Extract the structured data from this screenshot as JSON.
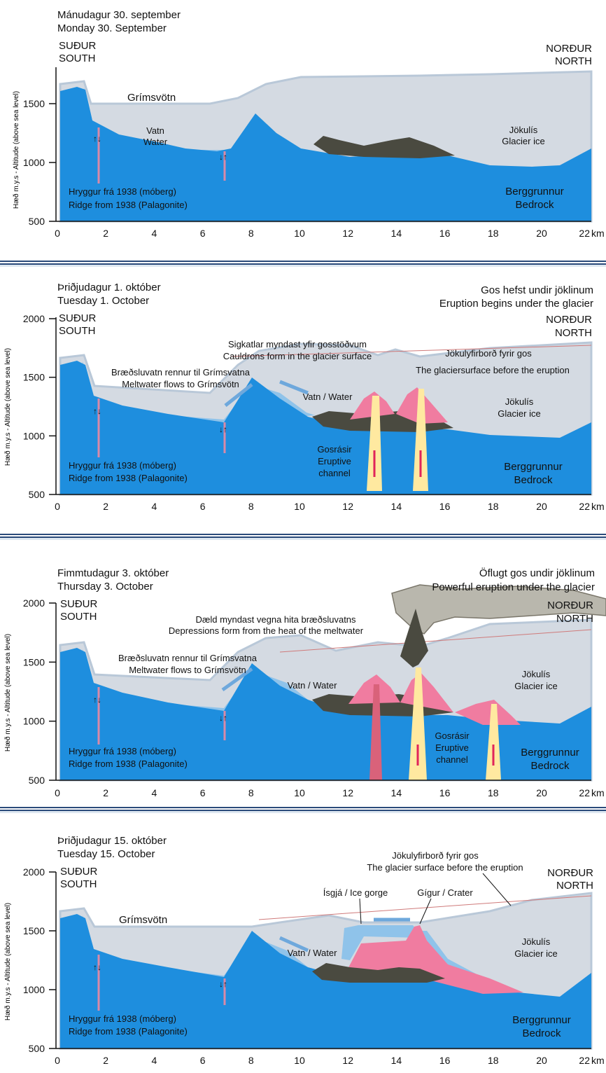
{
  "colors": {
    "bedrock": "#1e8ede",
    "water": "#8fc3ea",
    "glacier": "#d4dae2",
    "glacier_edge": "#b9c8d8",
    "hyaloclastite": "#4a4a40",
    "magma": "#f07ca0",
    "channel": "#ffe9a0",
    "ridge": "#d98aa8",
    "separator": "#2a4a7a"
  },
  "y_axis_label": "Hæð m.y.s - Altitude (above sea level)",
  "km_unit": "km",
  "panels": [
    {
      "date_is": "Mánudagur 30. september",
      "date_en": "Monday 30. September",
      "south_is": "SUÐUR",
      "south_en": "SOUTH",
      "north_is": "NORÐUR",
      "north_en": "NORTH",
      "y_ticks": [
        "500",
        "1000",
        "1500"
      ],
      "x_ticks": [
        "0",
        "2",
        "4",
        "6",
        "8",
        "10",
        "12",
        "14",
        "16",
        "18",
        "20",
        "22"
      ],
      "labels": {
        "grimsvotn": "Grímsvötn",
        "water_is": "Vatn",
        "water_en": "Water",
        "ice_is": "Jökulís",
        "ice_en": "Glacier ice",
        "ridge_is": "Hryggur frá 1938 (móberg)",
        "ridge_en": "Ridge from 1938 (Palagonite)",
        "bedrock_is": "Berggrunnur",
        "bedrock_en": "Bedrock"
      }
    },
    {
      "date_is": "Þriðjudagur 1. október",
      "date_en": "Tuesday 1. October",
      "event_is": "Gos hefst undir jöklinum",
      "event_en": "Eruption begins under the glacier",
      "south_is": "SUÐUR",
      "south_en": "SOUTH",
      "north_is": "NORÐUR",
      "north_en": "NORTH",
      "y_ticks": [
        "500",
        "1000",
        "1500",
        "2000"
      ],
      "x_ticks": [
        "0",
        "2",
        "4",
        "6",
        "8",
        "10",
        "12",
        "14",
        "16",
        "18",
        "20",
        "22"
      ],
      "labels": {
        "cauldron_is": "Sigkatlar myndast yfir gosstöðvum",
        "cauldron_en": "Cauldrons form in the glacier surface",
        "surface_is": "Jökulyfirborð fyrir gos",
        "surface_en": "The glaciersurface before the eruption",
        "meltwater_is": "Bræðsluvatn rennur til Grímsvatna",
        "meltwater_en": "Meltwater flows to Grímsvötn",
        "water": "Vatn / Water",
        "ice_is": "Jökulís",
        "ice_en": "Glacier ice",
        "channel_1": "Gosrásir",
        "channel_2": "Eruptive",
        "channel_3": "channel",
        "ridge_is": "Hryggur frá 1938 (móberg)",
        "ridge_en": "Ridge from 1938 (Palagonite)",
        "bedrock_is": "Berggrunnur",
        "bedrock_en": "Bedrock"
      }
    },
    {
      "date_is": "Fimmtudagur 3. október",
      "date_en": "Thursday 3. October",
      "event_is": "Öflugt gos undir jöklinum",
      "event_en": "Powerful eruption under the glacier",
      "south_is": "SUÐUR",
      "south_en": "SOUTH",
      "north_is": "NORÐUR",
      "north_en": "NORTH",
      "y_ticks": [
        "500",
        "1000",
        "1500",
        "2000"
      ],
      "x_ticks": [
        "0",
        "2",
        "4",
        "6",
        "8",
        "10",
        "12",
        "14",
        "16",
        "18",
        "20",
        "22"
      ],
      "labels": {
        "depression_is": "Dæld myndast vegna hita bræðsluvatns",
        "depression_en": "Depressions form from the heat of the meltwater",
        "meltwater_is": "Bræðsluvatn rennur til Grímsvatna",
        "meltwater_en": "Meltwater flows to Grímsvötn",
        "water": "Vatn / Water",
        "ice_is": "Jökulís",
        "ice_en": "Glacier ice",
        "channel_1": "Gosrásir",
        "channel_2": "Eruptive",
        "channel_3": "channel",
        "ridge_is": "Hryggur frá 1938 (móberg)",
        "ridge_en": "Ridge from 1938 (Palagonite)",
        "bedrock_is": "Berggrunnur",
        "bedrock_en": "Bedrock"
      }
    },
    {
      "date_is": "Þriðjudagur 15. október",
      "date_en": "Tuesday 15. October",
      "south_is": "SUÐUR",
      "south_en": "SOUTH",
      "north_is": "NORÐUR",
      "north_en": "NORTH",
      "y_ticks": [
        "500",
        "1000",
        "1500",
        "2000"
      ],
      "x_ticks": [
        "0",
        "2",
        "4",
        "6",
        "8",
        "10",
        "12",
        "14",
        "16",
        "18",
        "20",
        "22"
      ],
      "labels": {
        "grimsvotn": "Grímsvötn",
        "surface_is": "Jökulyfirborð fyrir gos",
        "surface_en": "The glacier surface before the eruption",
        "gorge": "Ísgjá / Ice gorge",
        "crater": "Gígur / Crater",
        "water": "Vatn / Water",
        "ice_is": "Jökulís",
        "ice_en": "Glacier ice",
        "ridge_is": "Hryggur frá 1938 (móberg)",
        "ridge_en": "Ridge from 1938 (Palagonite)",
        "bedrock_is": "Berggrunnur",
        "bedrock_en": "Bedrock"
      }
    }
  ]
}
